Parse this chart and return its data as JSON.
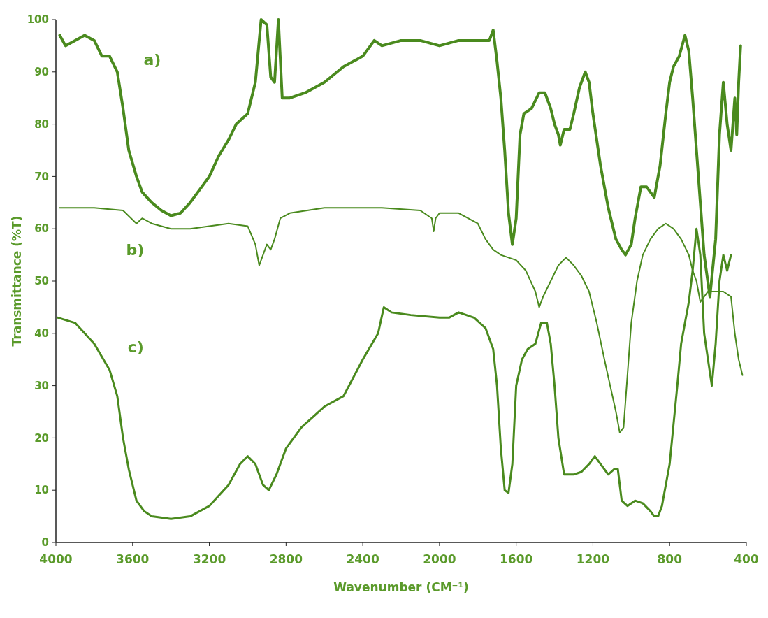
{
  "chart_data": {
    "type": "line",
    "xlabel": "Wavenumber (CM⁻¹)",
    "ylabel": "Transmittance (%T)",
    "xlim": [
      4000,
      400
    ],
    "xticks": [
      4000,
      3600,
      3200,
      2800,
      2400,
      2000,
      1600,
      1200,
      800,
      400
    ],
    "ylim": [
      0,
      100
    ],
    "yticks": [
      0,
      10,
      20,
      30,
      40,
      50,
      60,
      70,
      80,
      90,
      100
    ],
    "grid": false,
    "marker": "none",
    "line_style": "solid",
    "annotations": [
      "a)",
      "b)",
      "c)"
    ],
    "series": [
      {
        "color": "#4a8a1e",
        "x": [
          3980,
          3950,
          3900,
          3850,
          3800,
          3760,
          3720,
          3680,
          3650,
          3620,
          3580,
          3550,
          3500,
          3450,
          3400,
          3350,
          3300,
          3250,
          3200,
          3150,
          3100,
          3060,
          3000,
          2960,
          2930,
          2900,
          2880,
          2860,
          2840,
          2820,
          2780,
          2700,
          2600,
          2500,
          2400,
          2340,
          2300,
          2200,
          2100,
          2000,
          1900,
          1800,
          1740,
          1720,
          1700,
          1680,
          1660,
          1640,
          1620,
          1600,
          1580,
          1560,
          1520,
          1480,
          1450,
          1420,
          1400,
          1380,
          1370,
          1350,
          1320,
          1300,
          1270,
          1240,
          1220,
          1200,
          1160,
          1120,
          1080,
          1050,
          1030,
          1000,
          980,
          950,
          920,
          880,
          850,
          820,
          800,
          780,
          750,
          720,
          700,
          680,
          650,
          620,
          590,
          560,
          540,
          520,
          500,
          480,
          460,
          450,
          440,
          430
        ],
        "values": [
          97,
          95,
          96,
          97,
          96,
          93,
          93,
          90,
          83,
          75,
          70,
          67,
          65,
          63.5,
          62.5,
          63,
          65,
          67.5,
          70,
          74,
          77,
          80,
          82,
          88,
          100,
          99,
          89,
          88,
          100,
          85,
          85,
          86,
          88,
          91,
          93,
          96,
          95,
          96,
          96,
          95,
          96,
          96,
          96,
          98,
          92,
          85,
          75,
          63,
          57,
          62,
          78,
          82,
          83,
          86,
          86,
          83,
          80,
          78,
          76,
          79,
          79,
          82,
          87,
          90,
          88,
          82,
          72,
          64,
          58,
          56,
          55,
          57,
          62,
          68,
          68,
          66,
          72,
          82,
          88,
          91,
          93,
          97,
          94,
          85,
          70,
          55,
          47,
          58,
          78,
          88,
          80,
          75,
          85,
          78,
          88,
          95
        ]
      },
      {
        "color": "#4a8a1e",
        "x": [
          3980,
          3800,
          3650,
          3580,
          3550,
          3500,
          3400,
          3300,
          3100,
          3000,
          2960,
          2940,
          2920,
          2900,
          2880,
          2860,
          2830,
          2780,
          2600,
          2400,
          2300,
          2100,
          2040,
          2030,
          2020,
          2000,
          1900,
          1800,
          1760,
          1720,
          1680,
          1600,
          1550,
          1500,
          1480,
          1460,
          1420,
          1380,
          1340,
          1300,
          1260,
          1220,
          1180,
          1140,
          1110,
          1080,
          1060,
          1040,
          1020,
          1000,
          970,
          940,
          900,
          860,
          820,
          780,
          740,
          700,
          680,
          660,
          640,
          620,
          600,
          560,
          520,
          480,
          460,
          440,
          420
        ],
        "values": [
          64,
          64,
          63.5,
          61,
          62,
          61,
          60,
          60,
          61,
          60.5,
          57,
          53,
          55,
          57,
          56,
          58,
          62,
          63,
          64,
          64,
          64,
          63.5,
          62,
          59.5,
          62,
          63,
          63,
          61,
          58,
          56,
          55,
          54,
          52,
          48,
          45,
          47,
          50,
          53,
          54.5,
          53,
          51,
          48,
          42,
          35,
          30,
          25,
          21,
          22,
          32,
          42,
          50,
          55,
          58,
          60,
          61,
          60,
          58,
          55,
          52,
          50,
          46,
          47,
          48,
          48,
          48,
          47,
          40,
          35,
          32
        ]
      },
      {
        "color": "#4a8a1e",
        "x": [
          3990,
          3900,
          3800,
          3720,
          3680,
          3650,
          3620,
          3580,
          3540,
          3500,
          3400,
          3300,
          3200,
          3100,
          3040,
          3000,
          2960,
          2920,
          2890,
          2850,
          2800,
          2720,
          2600,
          2500,
          2400,
          2320,
          2290,
          2250,
          2150,
          2000,
          1950,
          1900,
          1820,
          1760,
          1720,
          1700,
          1680,
          1660,
          1640,
          1620,
          1600,
          1570,
          1540,
          1500,
          1470,
          1440,
          1420,
          1400,
          1380,
          1350,
          1300,
          1260,
          1220,
          1190,
          1160,
          1120,
          1090,
          1070,
          1050,
          1020,
          980,
          940,
          900,
          880,
          860,
          840,
          800,
          760,
          740,
          720,
          700,
          680,
          660,
          640,
          620,
          600,
          580,
          560,
          540,
          520,
          500,
          480
        ],
        "values": [
          43,
          42,
          38,
          33,
          28,
          20,
          14,
          8,
          6,
          5,
          4.5,
          5,
          7,
          11,
          15,
          16.5,
          15,
          11,
          10,
          13,
          18,
          22,
          26,
          28,
          35,
          40,
          45,
          44,
          43.5,
          43,
          43,
          44,
          43,
          41,
          37,
          30,
          18,
          10,
          9.5,
          15,
          30,
          35,
          37,
          38,
          42,
          42,
          38,
          30,
          20,
          13,
          13,
          13.5,
          15,
          16.5,
          15,
          13,
          14,
          14,
          8,
          7,
          8,
          7.5,
          6,
          5,
          5,
          7,
          15,
          30,
          38,
          42,
          46,
          52,
          60,
          55,
          40,
          35,
          30,
          38,
          50,
          55,
          52,
          55
        ]
      }
    ]
  }
}
